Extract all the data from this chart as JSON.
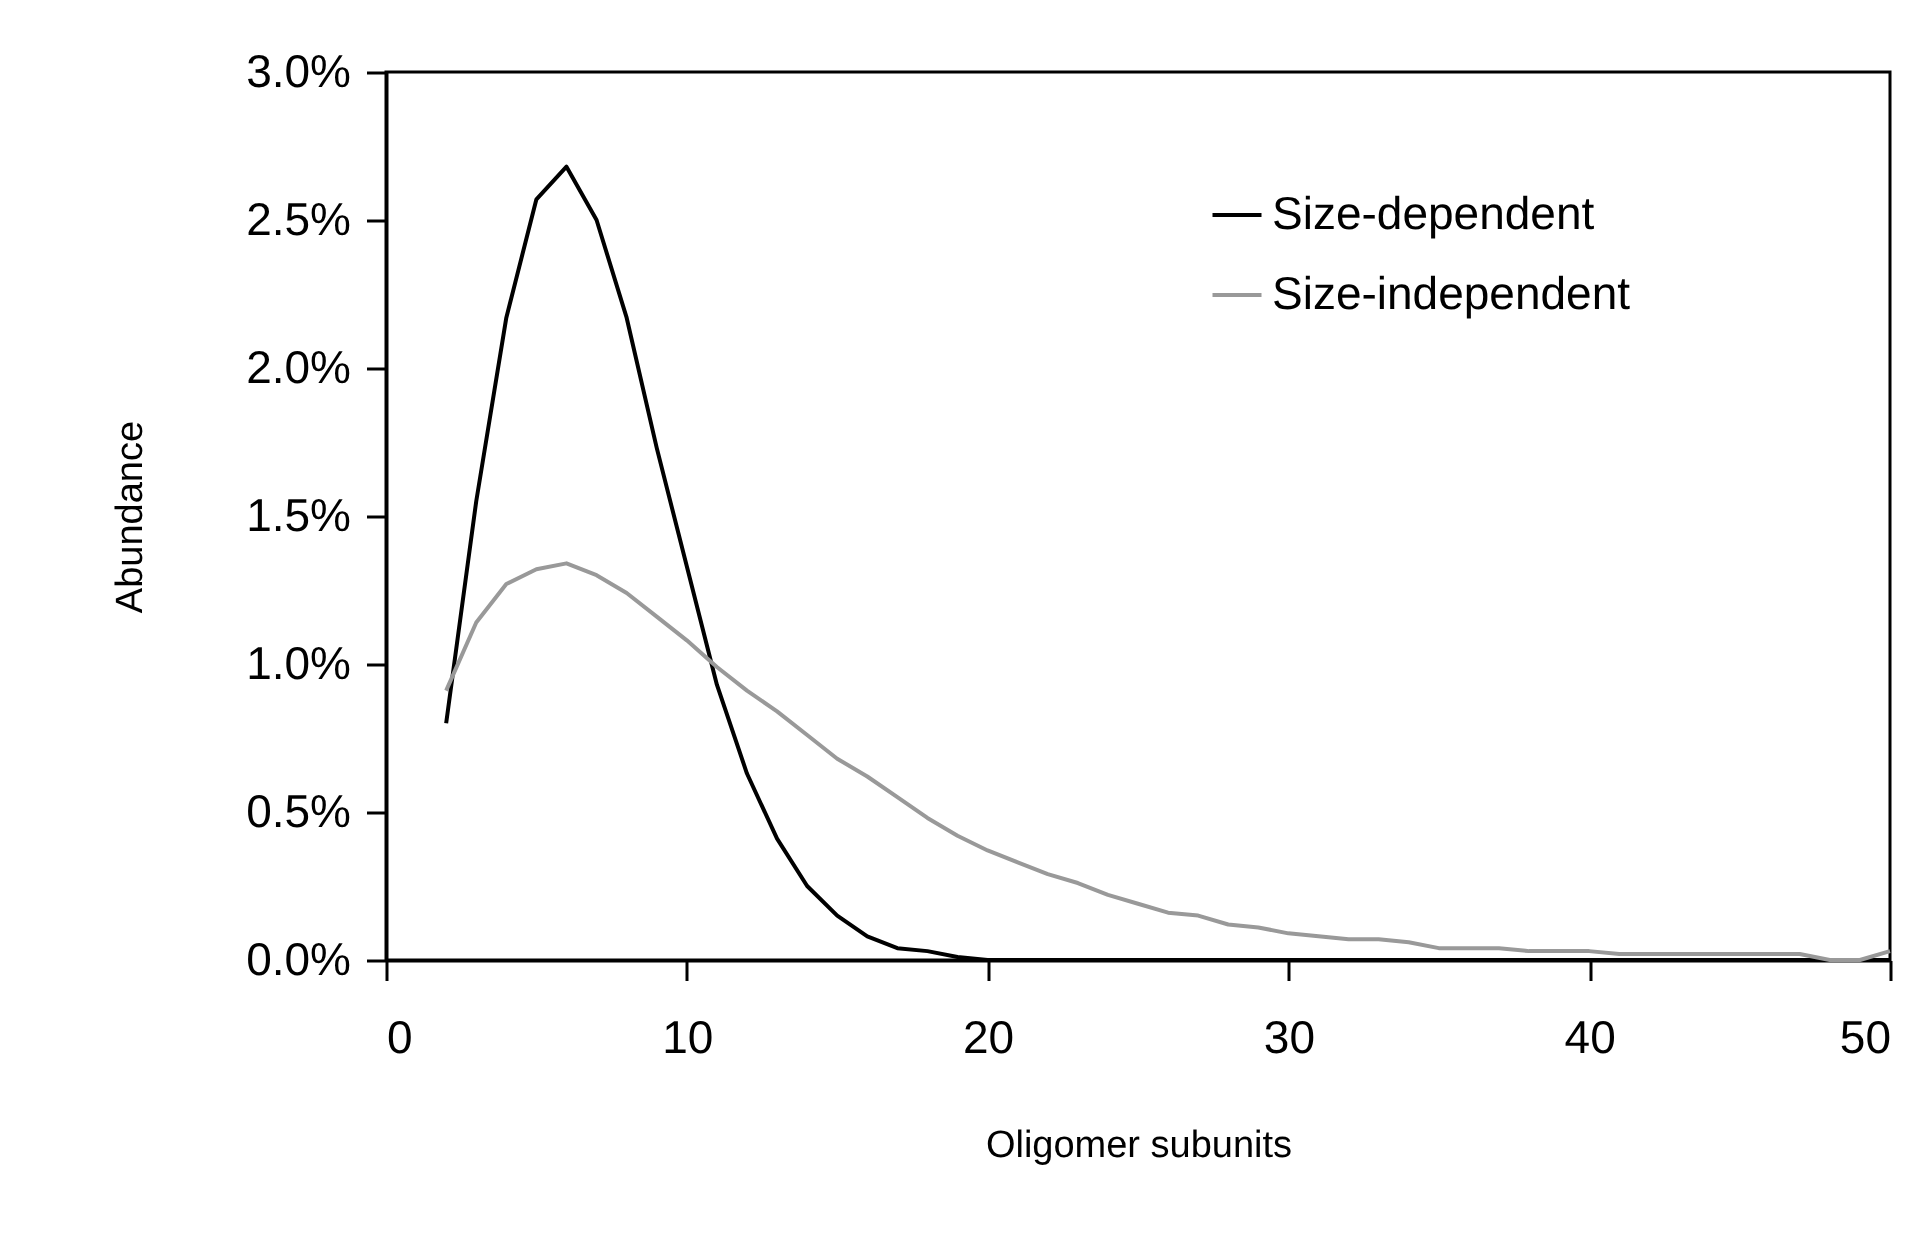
{
  "chart_data": {
    "type": "line",
    "xlabel": "Oligomer subunits",
    "ylabel": "Abundance",
    "x": [
      2,
      3,
      4,
      5,
      6,
      7,
      8,
      9,
      10,
      11,
      12,
      13,
      14,
      15,
      16,
      17,
      18,
      19,
      20,
      21,
      22,
      23,
      24,
      25,
      26,
      27,
      28,
      29,
      30,
      31,
      32,
      33,
      34,
      35,
      36,
      37,
      38,
      39,
      40,
      41,
      42,
      43,
      44,
      45,
      46,
      47,
      48,
      49,
      50
    ],
    "series": [
      {
        "name": "Size-dependent",
        "color": "#000000",
        "values": [
          0.8,
          1.55,
          2.17,
          2.57,
          2.68,
          2.5,
          2.17,
          1.73,
          1.33,
          0.93,
          0.63,
          0.41,
          0.25,
          0.15,
          0.08,
          0.04,
          0.03,
          0.01,
          0,
          0,
          0,
          0,
          0,
          0,
          0,
          0,
          0,
          0,
          0,
          0,
          0,
          0,
          0,
          0,
          0,
          0,
          0,
          0,
          0,
          0,
          0,
          0,
          0,
          0,
          0,
          0,
          0,
          0,
          0
        ]
      },
      {
        "name": "Size-independent",
        "color": "#999999",
        "values": [
          0.91,
          1.14,
          1.27,
          1.32,
          1.34,
          1.3,
          1.24,
          1.16,
          1.08,
          0.99,
          0.91,
          0.84,
          0.76,
          0.68,
          0.62,
          0.55,
          0.48,
          0.42,
          0.37,
          0.33,
          0.29,
          0.26,
          0.22,
          0.19,
          0.16,
          0.15,
          0.12,
          0.11,
          0.09,
          0.08,
          0.07,
          0.07,
          0.06,
          0.04,
          0.04,
          0.04,
          0.03,
          0.03,
          0.03,
          0.02,
          0.02,
          0.02,
          0.02,
          0.02,
          0.02,
          0.02,
          0,
          0,
          0.03
        ]
      }
    ],
    "xlim": [
      0,
      50
    ],
    "xticks": [
      0,
      10,
      20,
      30,
      40,
      50
    ],
    "ylim": [
      0,
      3
    ],
    "yticks": [
      {
        "value": 0,
        "label": "0.0%"
      },
      {
        "value": 0.5,
        "label": "0.5%"
      },
      {
        "value": 1,
        "label": "1.0%"
      },
      {
        "value": 1.5,
        "label": "1.5%"
      },
      {
        "value": 2,
        "label": "2.0%"
      },
      {
        "value": 2.5,
        "label": "2.5%"
      },
      {
        "value": 3,
        "label": "3.0%"
      }
    ],
    "grid": false,
    "legend": "top right",
    "marker": "none",
    "line_style": "solid"
  }
}
